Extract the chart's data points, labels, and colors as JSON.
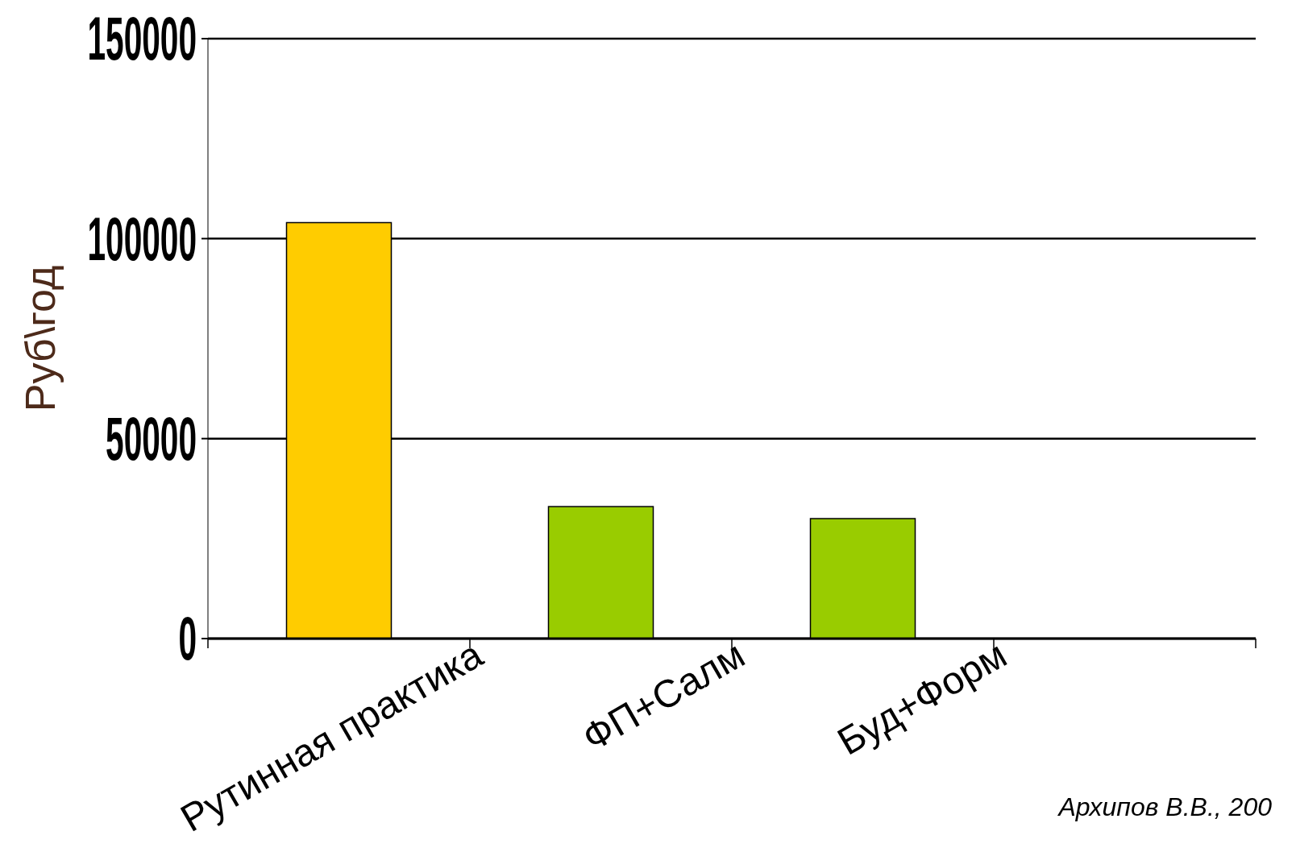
{
  "chart_data": {
    "type": "bar",
    "ylabel": "Руб\\год",
    "categories": [
      "Рутинная практика",
      "ФП+Салм",
      "Буд+Форм",
      null
    ],
    "values": [
      104000,
      33000,
      30000,
      null
    ],
    "colors": [
      "#ffcc00",
      "#99cc00",
      "#99cc00",
      null
    ],
    "ylim": [
      0,
      150000
    ],
    "yticks": [
      0,
      50000,
      100000,
      150000
    ],
    "grid": "y",
    "annotations": [
      "Архипов В.В., 200"
    ]
  }
}
